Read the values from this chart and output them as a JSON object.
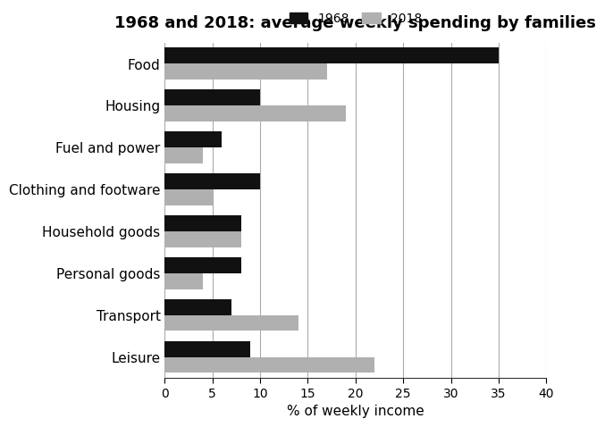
{
  "title": "1968 and 2018: average weekly spending by families",
  "categories": [
    "Food",
    "Housing",
    "Fuel and power",
    "Clothing and footware",
    "Household goods",
    "Personal goods",
    "Transport",
    "Leisure"
  ],
  "values_1968": [
    35,
    10,
    6,
    10,
    8,
    8,
    7,
    9
  ],
  "values_2018": [
    17,
    19,
    4,
    5,
    8,
    4,
    14,
    22
  ],
  "color_1968": "#111111",
  "color_2018": "#b0b0b0",
  "xlabel": "% of weekly income",
  "xlim": [
    0,
    40
  ],
  "xticks": [
    0,
    5,
    10,
    15,
    20,
    25,
    30,
    35,
    40
  ],
  "legend_labels": [
    "1968",
    "2018"
  ],
  "bar_height": 0.38,
  "title_fontsize": 13,
  "label_fontsize": 11,
  "tick_fontsize": 10
}
